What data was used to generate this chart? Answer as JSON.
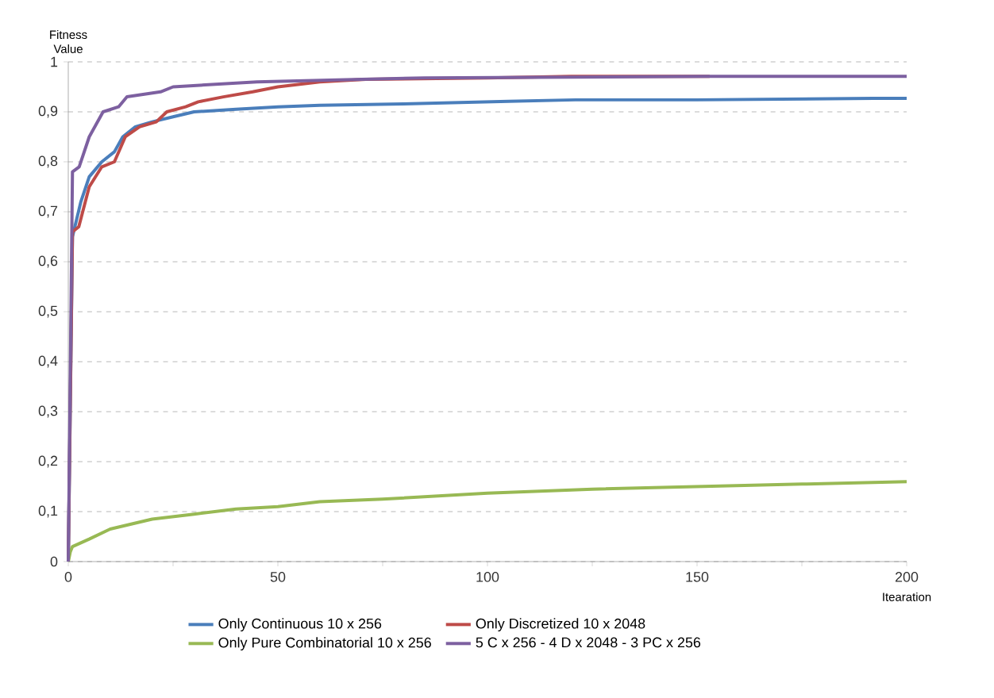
{
  "chart_data": {
    "type": "line",
    "xlabel": "Itearation",
    "ylabel": "Fitness Value",
    "xlim": [
      0,
      200
    ],
    "xticks": [
      0,
      {
        "value": 25,
        "label": null
      },
      50,
      {
        "value": 75,
        "label": null
      },
      100,
      {
        "value": 125,
        "label": null
      },
      150,
      {
        "value": 175,
        "label": null
      },
      200
    ],
    "ylim": [
      0,
      1
    ],
    "yticks": [
      0,
      {
        "value": 0.1,
        "label": "0,1"
      },
      {
        "value": 0.2,
        "label": "0,2"
      },
      {
        "value": 0.3,
        "label": "0,3"
      },
      {
        "value": 0.4,
        "label": "0,4"
      },
      {
        "value": 0.5,
        "label": "0,5"
      },
      {
        "value": 0.6,
        "label": "0,6"
      },
      {
        "value": 0.7,
        "label": "0,7"
      },
      {
        "value": 0.8,
        "label": "0,8"
      },
      {
        "value": 0.9,
        "label": "0,9"
      },
      1
    ],
    "grid": "y",
    "legend": "bottom",
    "series": [
      {
        "name": "Only Continuous 10 x 256",
        "color": "#4a7ebb",
        "x": [
          0,
          1,
          3,
          5,
          8,
          11,
          13,
          16,
          20,
          25,
          30,
          40,
          50,
          60,
          80,
          105,
          121,
          150,
          192,
          200
        ],
        "values": [
          0,
          0.65,
          0.72,
          0.77,
          0.8,
          0.82,
          0.85,
          0.87,
          0.88,
          0.89,
          0.9,
          0.905,
          0.91,
          0.913,
          0.916,
          0.921,
          0.924,
          0.924,
          0.927,
          0.927
        ]
      },
      {
        "name": "Only Discretized 10 x 2048",
        "color": "#be4b48",
        "x": [
          0,
          1,
          2.5,
          5,
          8,
          11,
          13.6,
          17,
          21,
          23.5,
          28,
          31,
          37,
          44,
          50,
          60,
          71,
          100,
          120,
          153
        ],
        "values": [
          0,
          0.66,
          0.67,
          0.75,
          0.79,
          0.8,
          0.85,
          0.87,
          0.88,
          0.9,
          0.91,
          0.92,
          0.93,
          0.94,
          0.95,
          0.96,
          0.965,
          0.968,
          0.971,
          0.971
        ]
      },
      {
        "name": "Only Pure Combinatorial  10 x 256",
        "color": "#98b954",
        "x": [
          0,
          0.5,
          1,
          5,
          10,
          15,
          20,
          30,
          40,
          50,
          60,
          75,
          100,
          125,
          150,
          175,
          200
        ],
        "values": [
          0,
          0.02,
          0.03,
          0.045,
          0.065,
          0.075,
          0.085,
          0.095,
          0.105,
          0.11,
          0.12,
          0.125,
          0.137,
          0.145,
          0.15,
          0.155,
          0.16
        ]
      },
      {
        "name": "5 C x 256 - 4 D x 2048 - 3 PC x 256",
        "color": "#7d60a0",
        "x": [
          0,
          1,
          2.6,
          5,
          8.3,
          12,
          14,
          22,
          25,
          45,
          70,
          85,
          153,
          200
        ],
        "values": [
          0,
          0.78,
          0.79,
          0.85,
          0.9,
          0.91,
          0.93,
          0.94,
          0.95,
          0.96,
          0.965,
          0.968,
          0.971,
          0.971
        ]
      }
    ]
  }
}
